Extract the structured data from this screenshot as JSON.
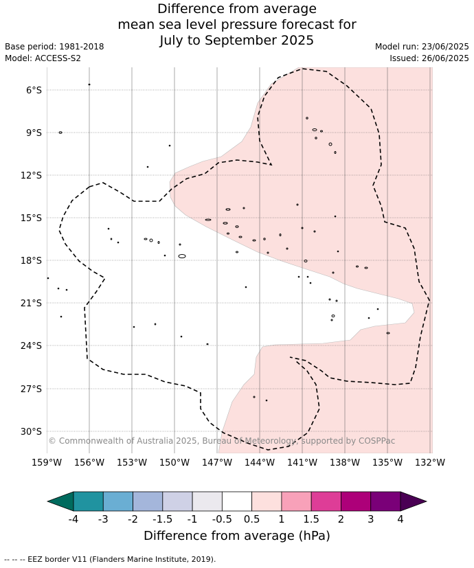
{
  "title": {
    "line1": "Difference from average",
    "line2": "mean sea level pressure forecast for",
    "line3": "July to September 2025"
  },
  "meta": {
    "base_period": "Base period: 1981-2018",
    "model": "Model: ACCESS-S2",
    "model_run": "Model run: 23/06/2025",
    "issued": "Issued: 26/06/2025"
  },
  "map": {
    "lat_labels": [
      "6°S",
      "9°S",
      "12°S",
      "15°S",
      "18°S",
      "21°S",
      "24°S",
      "27°S",
      "30°S"
    ],
    "lon_labels": [
      "159°W",
      "156°W",
      "153°W",
      "150°W",
      "147°W",
      "144°W",
      "141°W",
      "138°W",
      "135°W",
      "132°W"
    ],
    "copyright": "© Commonwealth of Australia 2025, Bureau of Meteorology, supported by COSPPac",
    "shaded_category": "0.5 to 1",
    "shade_color": "#fce0de"
  },
  "colorbar": {
    "title": "Difference from average (hPa)",
    "labels": [
      "-4",
      "-3",
      "-2",
      "-1.5",
      "-1",
      "-0.5",
      "0.5",
      "1",
      "1.5",
      "2",
      "3",
      "4"
    ],
    "colors": [
      "#006b5e",
      "#2093a0",
      "#6aaed3",
      "#a4b6db",
      "#cfd1e6",
      "#ebe9ee",
      "#ffffff",
      "#fde0de",
      "#f8a1b9",
      "#de3d97",
      "#ad0079",
      "#7a0078",
      "#4a0054"
    ]
  },
  "footer": "-- -- -- EEZ border V11 (Flanders Marine Institute, 2019)."
}
